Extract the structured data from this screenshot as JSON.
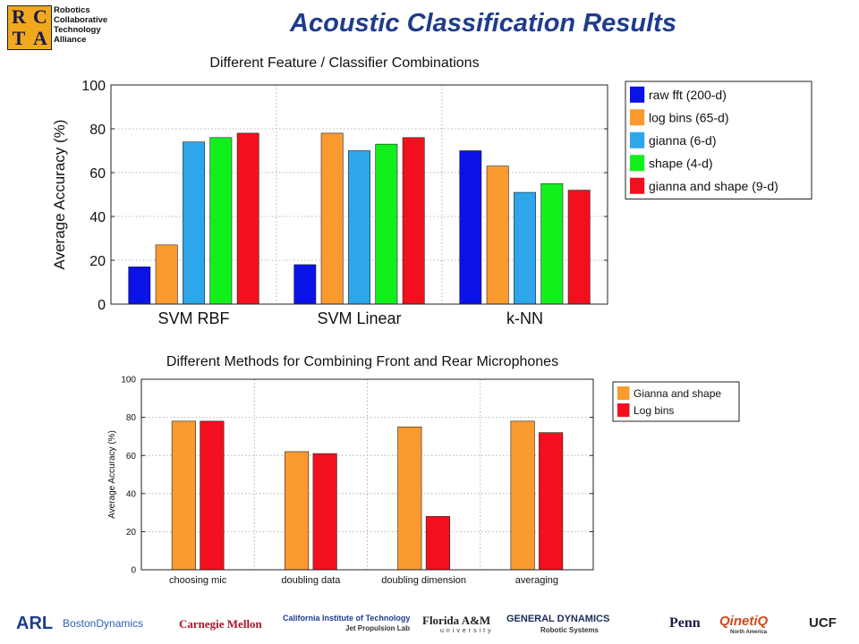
{
  "header": {
    "logo_letters": [
      "R",
      "C",
      "T",
      "A"
    ],
    "logo_words": [
      "Robotics",
      "Collaborative",
      "Technology",
      "Alliance"
    ],
    "title": "Acoustic Classification Results"
  },
  "chart_data": [
    {
      "type": "bar",
      "title": "Different Feature / Classifier Combinations",
      "xlabel": "",
      "ylabel": "Average Accuracy (%)",
      "ylim": [
        0,
        100
      ],
      "yticks": [
        "0",
        "20",
        "40",
        "60",
        "80",
        "100"
      ],
      "grid": true,
      "legend": "right",
      "categories": [
        "SVM RBF",
        "SVM Linear",
        "k-NN"
      ],
      "series": [
        {
          "name": "raw fft (200-d)",
          "color": "#0a12e8",
          "values": [
            17,
            18,
            70
          ]
        },
        {
          "name": "log bins (65-d)",
          "color": "#fb9a2e",
          "values": [
            27,
            78,
            63
          ]
        },
        {
          "name": "gianna (6-d)",
          "color": "#2ea6ea",
          "values": [
            74,
            70,
            51
          ]
        },
        {
          "name": "shape (4-d)",
          "color": "#12f01c",
          "values": [
            76,
            73,
            55
          ]
        },
        {
          "name": "gianna and shape (9-d)",
          "color": "#f2101e",
          "values": [
            78,
            76,
            52
          ]
        }
      ]
    },
    {
      "type": "bar",
      "title": "Different Methods for Combining Front and Rear Microphones",
      "xlabel": "",
      "ylabel": "Average Accuracy (%)",
      "ylim": [
        0,
        100
      ],
      "yticks": [
        "0",
        "20",
        "40",
        "60",
        "80",
        "100"
      ],
      "grid": true,
      "legend": "right",
      "categories": [
        "choosing mic",
        "doubling data",
        "doubling dimension",
        "averaging"
      ],
      "series": [
        {
          "name": "Gianna and shape",
          "color": "#fb9a2e",
          "values": [
            78,
            62,
            75,
            78
          ]
        },
        {
          "name": "Log bins",
          "color": "#f2101e",
          "values": [
            78,
            61,
            28,
            72
          ]
        }
      ]
    }
  ],
  "sponsors": [
    "ARL",
    "BostonDynamics",
    "Carnegie Mellon",
    "California Institute of Technology",
    "Jet Propulsion Lab",
    "Florida A&M",
    "university",
    "GENERAL DYNAMICS",
    "Robotic Systems",
    "Penn",
    "QinetiQ",
    "North America",
    "UCF"
  ]
}
